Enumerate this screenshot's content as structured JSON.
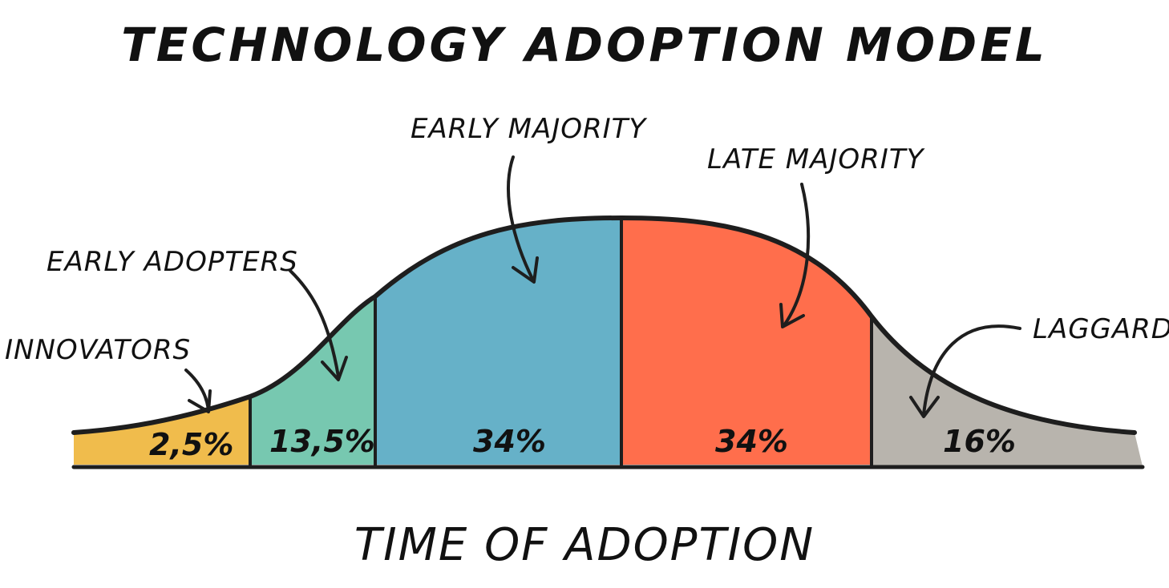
{
  "title": "TECHNOLOGY ADOPTION MODEL",
  "axis_label": "TIME OF ADOPTION",
  "segments": [
    {
      "category": "INNOVATORS",
      "value_label": "2,5%",
      "share": 2.5,
      "color": "#F0BC4C"
    },
    {
      "category": "EARLY ADOPTERS",
      "value_label": "13,5%",
      "share": 13.5,
      "color": "#77C8B0"
    },
    {
      "category": "EARLY MAJORITY",
      "value_label": "34%",
      "share": 34,
      "color": "#66B1C8"
    },
    {
      "category": "LATE MAJORITY",
      "value_label": "34%",
      "share": 34,
      "color": "#FF6E4C"
    },
    {
      "category": "LAGGARDS",
      "value_label": "16%",
      "share": 16,
      "color": "#B8B4AD"
    }
  ],
  "outline_color": "#1E1E1E"
}
